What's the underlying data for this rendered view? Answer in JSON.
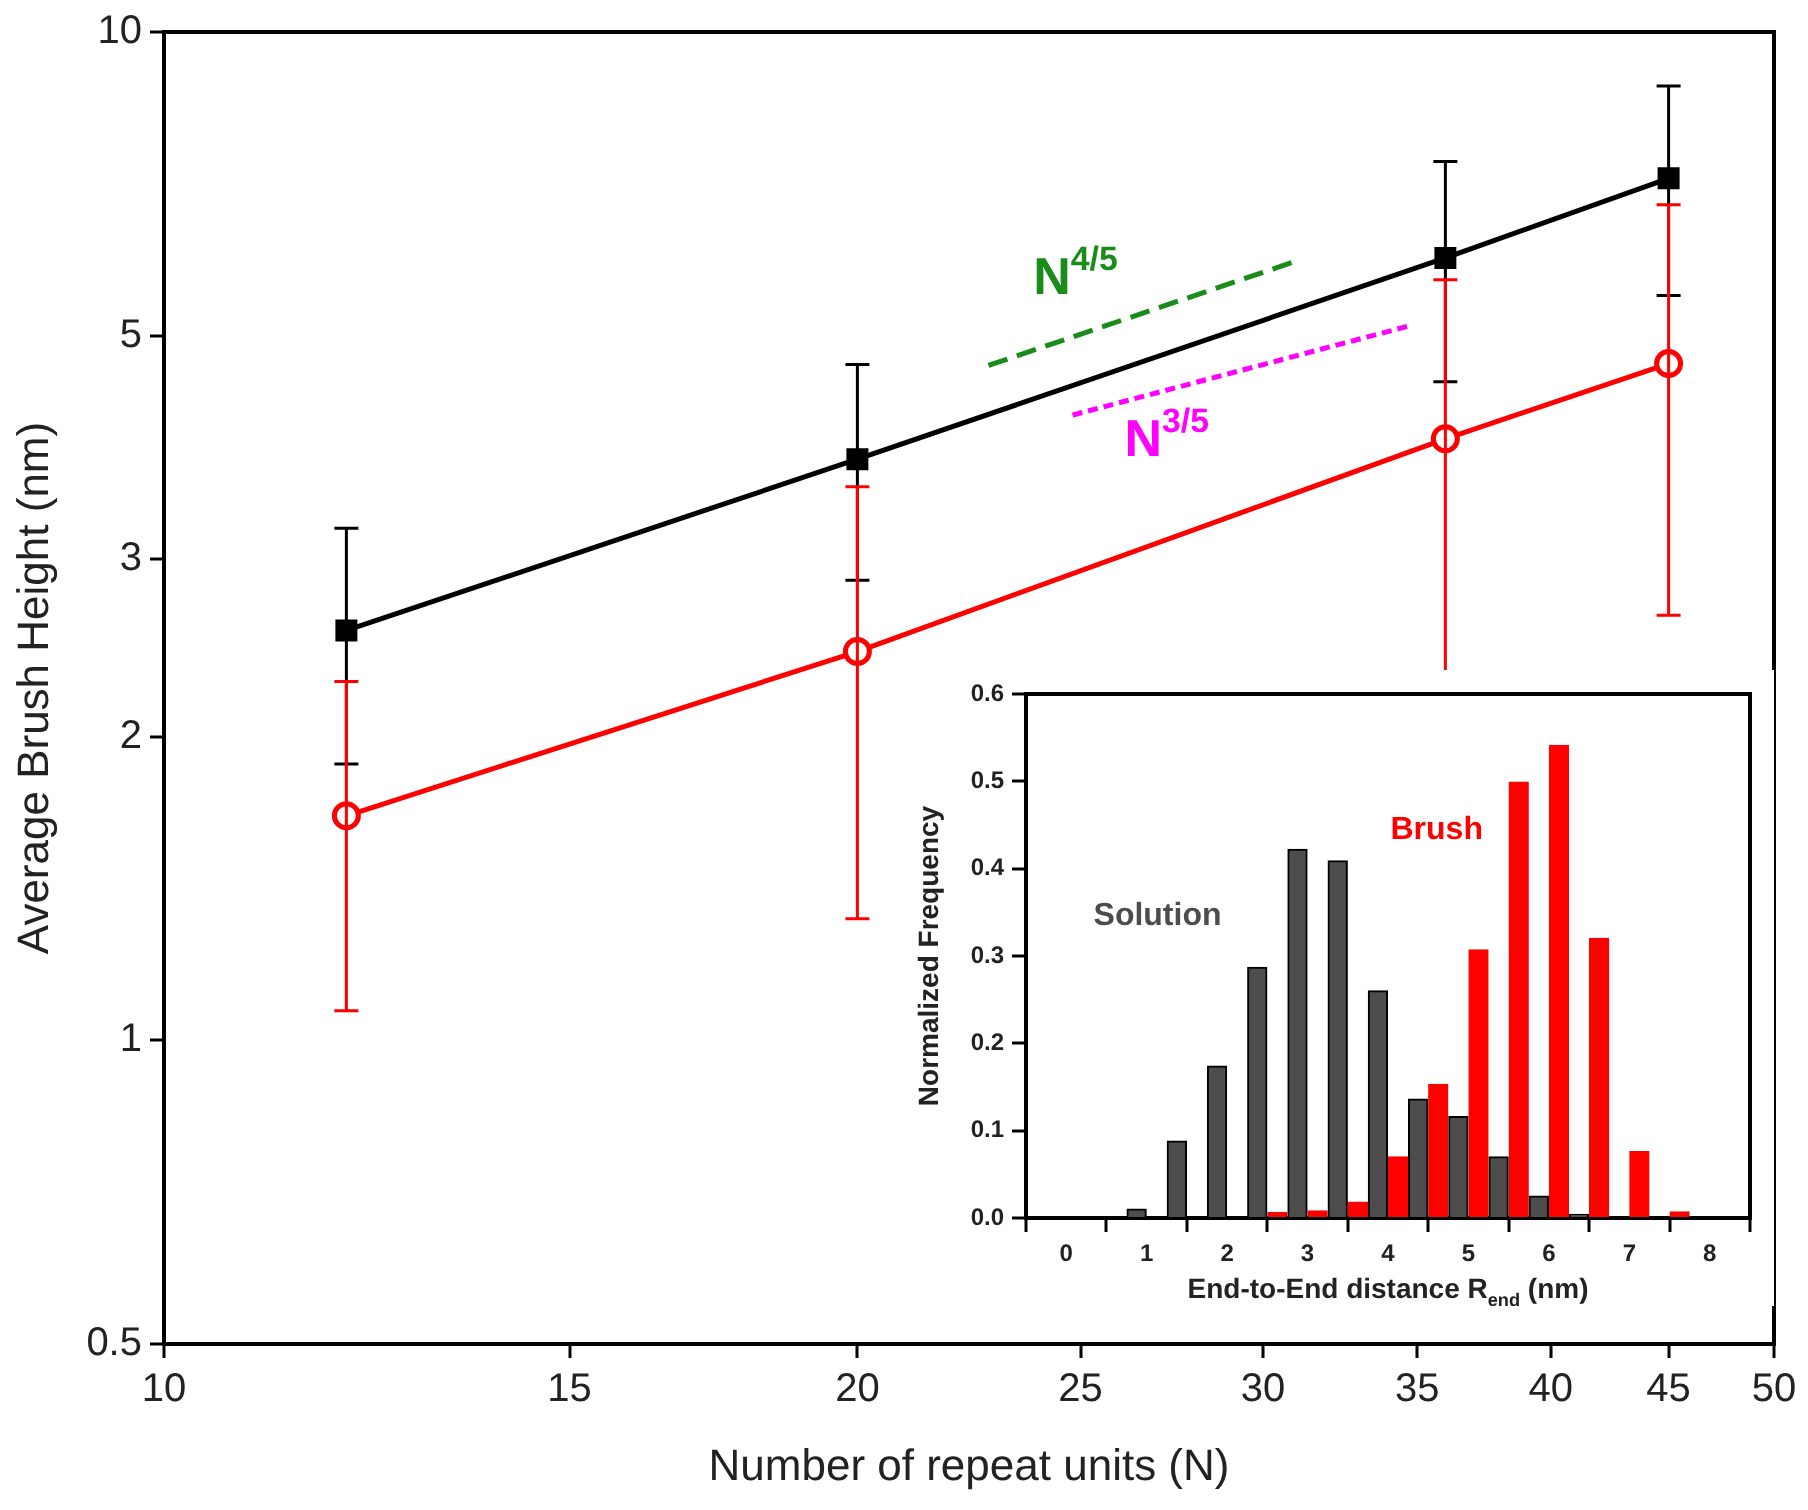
{
  "chart_data": [
    {
      "type": "line",
      "xlabel": "Number of repeat units (N)",
      "ylabel": "Average Brush Height (nm)",
      "log": "xy",
      "xlim": [
        10,
        50
      ],
      "xticks": [
        10,
        15,
        20,
        25,
        30,
        35,
        40,
        45,
        50
      ],
      "ylim": [
        0.5,
        10
      ],
      "yticks": [
        0.5,
        1,
        2,
        3,
        5,
        10
      ],
      "x": [
        12,
        20,
        36,
        45
      ],
      "series": [
        {
          "color": "#000000",
          "marker": "square",
          "values": [
            2.55,
            3.77,
            5.97,
            7.16
          ],
          "errors": [
            0.67,
            0.91,
            1.47,
            1.68
          ]
        },
        {
          "color": "#ff0000",
          "marker": "circle",
          "values": [
            1.67,
            2.43,
            3.95,
            4.69
          ],
          "errors": [
            0.6,
            1.11,
            1.73,
            2.05
          ]
        },
        {
          "name": "N$^{4/5}$",
          "color": "#1a8c1a",
          "marker": "none",
          "line_style": "dashed",
          "x": [
            22.8,
            31.1
          ],
          "values": [
            4.67,
            5.94
          ]
        },
        {
          "name": "N$^{3/5}$",
          "color": "#ff00ff",
          "marker": "none",
          "line_style": "dotted",
          "x": [
            24.8,
            34.7
          ],
          "values": [
            4.17,
            5.11
          ]
        }
      ]
    },
    {
      "type": "bar",
      "xlabel": "End-to-End distance R$_{end}$ (nm)",
      "ylabel": "Normalized Frequency",
      "xlim": [
        0,
        8
      ],
      "xticks": [
        0,
        1,
        2,
        3,
        4,
        5,
        6,
        7,
        8
      ],
      "ylim": [
        0,
        0.6
      ],
      "yticks": [
        {
          "value": 0,
          "label": "0.0"
        },
        {
          "value": 0.1,
          "label": "0.1"
        },
        {
          "value": 0.2,
          "label": "0.2"
        },
        {
          "value": 0.3,
          "label": "0.3"
        },
        {
          "value": 0.4,
          "label": "0.4"
        },
        {
          "value": 0.5,
          "label": "0.5"
        },
        {
          "value": 0.6,
          "label": "0.6"
        }
      ],
      "series": [
        {
          "name": "Solution",
          "color": "#4d4d4d",
          "x": [
            0.875,
            1.375,
            1.875,
            2.375,
            2.875,
            3.375,
            3.875,
            4.375,
            4.875,
            5.375,
            5.875,
            6.375
          ],
          "values": [
            0.01,
            0.088,
            0.174,
            0.287,
            0.422,
            0.409,
            0.26,
            0.136,
            0.116,
            0.07,
            0.025,
            0.004
          ]
        },
        {
          "name": "Brush",
          "color": "#ff0000",
          "x": [
            2.625,
            3.125,
            3.625,
            4.125,
            4.625,
            5.125,
            5.625,
            6.125,
            6.625,
            7.125,
            7.625
          ],
          "values": [
            0.006,
            0.008,
            0.018,
            0.07,
            0.153,
            0.307,
            0.499,
            0.541,
            0.32,
            0.076,
            0.007
          ]
        }
      ]
    }
  ]
}
